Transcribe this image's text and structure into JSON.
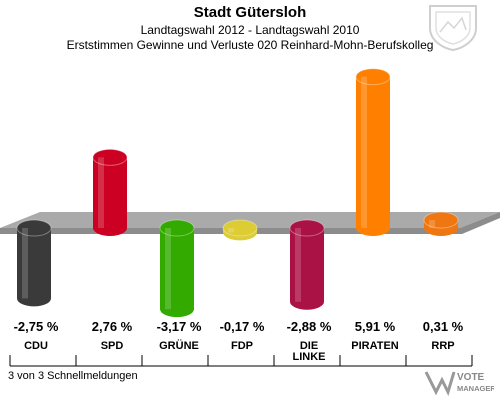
{
  "header": {
    "title": "Stadt Gütersloh",
    "subtitle": "Landtagswahl 2012 - Landtagswahl 2010",
    "description": "Erststimmen Gewinne und Verluste 020 Reinhard-Mohn-Berufskolleg"
  },
  "footer": {
    "status": "3 von 3 Schnellmeldungen"
  },
  "logo": {
    "line1": "VOTE",
    "line2": "MANAGER"
  },
  "chart_data": {
    "type": "bar",
    "categories": [
      "CDU",
      "SPD",
      "GRÜNE",
      "FDP",
      "DIE LINKE",
      "PIRATEN",
      "RRP"
    ],
    "values": [
      -2.75,
      2.76,
      -3.17,
      -0.17,
      -2.88,
      5.91,
      0.31
    ],
    "labels": [
      "-2,75 %",
      "2,76 %",
      "-3,17 %",
      "-0,17 %",
      "-2,88 %",
      "5,91 %",
      "0,31 %"
    ],
    "colors": [
      "#3a3a3a",
      "#cc0022",
      "#33aa00",
      "#ddcc33",
      "#aa1144",
      "#ff8000",
      "#ee7711"
    ],
    "title": "",
    "xlabel": "",
    "ylabel": ""
  }
}
